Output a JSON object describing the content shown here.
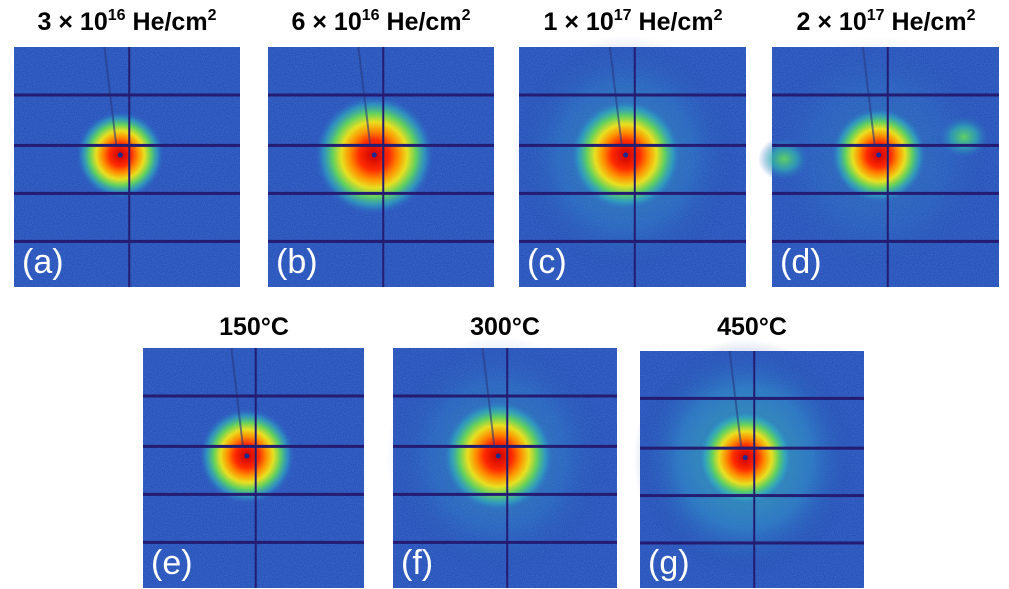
{
  "top_row": [
    {
      "title": {
        "base": "3 × 10",
        "exp": "16",
        "unit": "He/cm",
        "unit_exp": "2"
      },
      "label": "(a)"
    },
    {
      "title": {
        "base": "6 × 10",
        "exp": "16",
        "unit": "He/cm",
        "unit_exp": "2"
      },
      "label": "(b)"
    },
    {
      "title": {
        "base": "1 × 10",
        "exp": "17",
        "unit": "He/cm",
        "unit_exp": "2"
      },
      "label": "(c)"
    },
    {
      "title": {
        "base": "2 × 10",
        "exp": "17",
        "unit": "He/cm",
        "unit_exp": "2"
      },
      "label": "(d)"
    }
  ],
  "bottom_row": [
    {
      "title": "150°C",
      "label": "(e)"
    },
    {
      "title": "300°C",
      "label": "(f)"
    },
    {
      "title": "450°C",
      "label": "(g)"
    }
  ]
}
